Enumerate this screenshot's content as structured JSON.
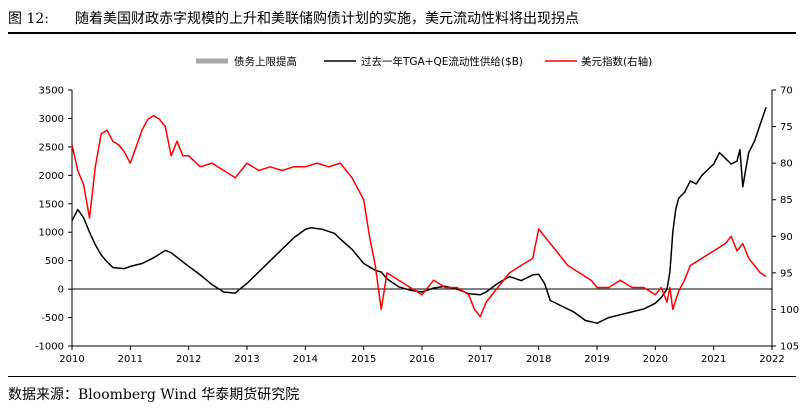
{
  "header": {
    "figure_label": "图 12:",
    "title": "随着美国财政赤字规模的上升和美联储购债计划的实施，美元流动性料将出现拐点"
  },
  "footer": {
    "source": "数据来源：Bloomberg Wind 华泰期货研究院"
  },
  "colors": {
    "debt_ceiling": "#a6a6a6",
    "liquidity": "#000000",
    "dxy": "#ff0000"
  },
  "chart_data": {
    "type": "line",
    "title": "",
    "xlabel": "",
    "ylabel": "",
    "x_ticks": [
      "2010",
      "2011",
      "2012",
      "2013",
      "2014",
      "2015",
      "2016",
      "2017",
      "2018",
      "2019",
      "2020",
      "2021",
      "2022"
    ],
    "xlim": [
      2010,
      2022
    ],
    "y_left": {
      "lim": [
        -1000,
        3500
      ],
      "ticks": [
        "3500",
        "3000",
        "2500",
        "2000",
        "1500",
        "1000",
        "500",
        "0",
        "-500",
        "-1000"
      ]
    },
    "y_right": {
      "lim": [
        70,
        105
      ],
      "inverted": true,
      "ticks": [
        "70",
        "75",
        "80",
        "85",
        "90",
        "95",
        "100",
        "105"
      ]
    },
    "legend": [
      "债务上限提高",
      "过去一年TGA+QE流动性供给($B)",
      "美元指数(右轴)"
    ],
    "series": [
      {
        "name": "过去一年TGA+QE流动性供给($B)",
        "axis": "left",
        "x": [
          2010.0,
          2010.1,
          2010.2,
          2010.3,
          2010.4,
          2010.5,
          2010.6,
          2010.7,
          2010.8,
          2010.9,
          2011.0,
          2011.2,
          2011.4,
          2011.6,
          2011.7,
          2011.8,
          2012.0,
          2012.2,
          2012.4,
          2012.6,
          2012.8,
          2012.9,
          2013.0,
          2013.2,
          2013.4,
          2013.6,
          2013.8,
          2014.0,
          2014.1,
          2014.3,
          2014.5,
          2014.6,
          2014.8,
          2015.0,
          2015.2,
          2015.3,
          2015.4,
          2015.6,
          2015.8,
          2016.0,
          2016.2,
          2016.4,
          2016.6,
          2016.8,
          2017.0,
          2017.1,
          2017.3,
          2017.5,
          2017.7,
          2017.9,
          2018.0,
          2018.1,
          2018.2,
          2018.4,
          2018.6,
          2018.8,
          2019.0,
          2019.2,
          2019.4,
          2019.6,
          2019.8,
          2019.9,
          2020.0,
          2020.1,
          2020.2,
          2020.25,
          2020.3,
          2020.35,
          2020.4,
          2020.5,
          2020.6,
          2020.7,
          2020.8,
          2020.9,
          2021.0,
          2021.1,
          2021.2,
          2021.3,
          2021.4,
          2021.45,
          2021.5,
          2021.55,
          2021.6,
          2021.7,
          2021.75,
          2021.8,
          2021.85,
          2021.9
        ],
        "y": [
          1200,
          1400,
          1250,
          1000,
          780,
          600,
          480,
          380,
          370,
          360,
          400,
          450,
          550,
          680,
          640,
          560,
          400,
          250,
          80,
          -50,
          -70,
          20,
          100,
          300,
          500,
          700,
          900,
          1050,
          1080,
          1050,
          980,
          880,
          700,
          450,
          330,
          300,
          180,
          40,
          -20,
          -50,
          20,
          50,
          0,
          -80,
          -100,
          -50,
          100,
          220,
          150,
          250,
          260,
          100,
          -200,
          -300,
          -400,
          -550,
          -600,
          -500,
          -450,
          -400,
          -350,
          -300,
          -250,
          -150,
          0,
          300,
          1000,
          1400,
          1600,
          1700,
          1900,
          1850,
          2000,
          2100,
          2200,
          2400,
          2300,
          2200,
          2250,
          2450,
          1800,
          2100,
          2400,
          2600,
          2750,
          2900,
          3050,
          3200
        ]
      },
      {
        "name": "美元指数(右轴)",
        "axis": "right",
        "x": [
          2010.0,
          2010.1,
          2010.2,
          2010.3,
          2010.4,
          2010.5,
          2010.6,
          2010.7,
          2010.8,
          2010.9,
          2011.0,
          2011.2,
          2011.3,
          2011.4,
          2011.5,
          2011.6,
          2011.7,
          2011.8,
          2011.9,
          2012.0,
          2012.2,
          2012.4,
          2012.6,
          2012.8,
          2013.0,
          2013.2,
          2013.4,
          2013.6,
          2013.8,
          2014.0,
          2014.2,
          2014.4,
          2014.6,
          2014.8,
          2015.0,
          2015.1,
          2015.2,
          2015.3,
          2015.4,
          2015.6,
          2015.8,
          2016.0,
          2016.2,
          2016.4,
          2016.6,
          2016.8,
          2016.9,
          2017.0,
          2017.1,
          2017.3,
          2017.5,
          2017.7,
          2017.9,
          2018.0,
          2018.1,
          2018.3,
          2018.5,
          2018.7,
          2018.9,
          2019.0,
          2019.2,
          2019.4,
          2019.6,
          2019.8,
          2020.0,
          2020.1,
          2020.2,
          2020.25,
          2020.3,
          2020.4,
          2020.5,
          2020.6,
          2020.8,
          2021.0,
          2021.2,
          2021.3,
          2021.4,
          2021.5,
          2021.6,
          2021.7,
          2021.8,
          2021.9
        ],
        "y": [
          77.5,
          81,
          83,
          87.5,
          80.5,
          76,
          75.5,
          77,
          77.5,
          78.5,
          80,
          75.5,
          74,
          73.5,
          74,
          75,
          79,
          77,
          79,
          79,
          80.5,
          80,
          81,
          82,
          80,
          81,
          80.5,
          81,
          80.5,
          80.5,
          80,
          80.5,
          80,
          82,
          85,
          90,
          94,
          100,
          95,
          96,
          97,
          98,
          96,
          97,
          97,
          98,
          100,
          101,
          99,
          97,
          95,
          94,
          93,
          89,
          90,
          92,
          94,
          95,
          96,
          97,
          97,
          96,
          97,
          97,
          98,
          97,
          99,
          97,
          100,
          97.5,
          96,
          94,
          93,
          92,
          91,
          90,
          92,
          91,
          93,
          94,
          95,
          95.5
        ]
      }
    ]
  }
}
